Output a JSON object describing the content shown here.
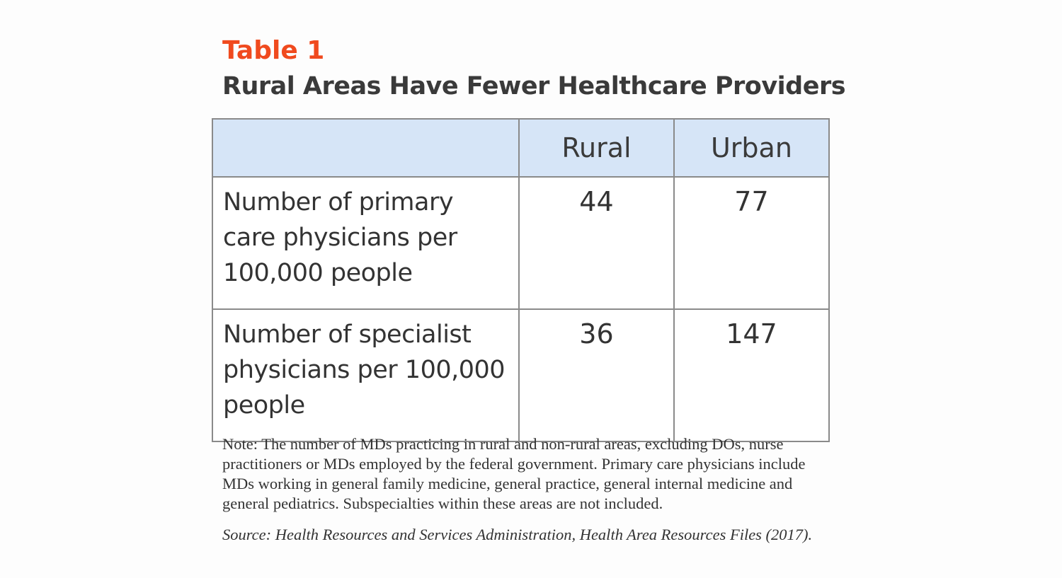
{
  "header": {
    "label": "Table 1",
    "title": "Rural Areas Have Fewer Healthcare Providers"
  },
  "table": {
    "columns": [
      "",
      "Rural",
      "Urban"
    ],
    "rows": [
      {
        "label": "Number of primary care physicians per 100,000 people",
        "rural": "44",
        "urban": "77"
      },
      {
        "label": "Number of specialist physicians per 100,000 people",
        "rural": "36",
        "urban": "147"
      }
    ]
  },
  "note": "Note: The number of MDs practicing in rural and non-rural areas, excluding DOs, nurse practitioners or MDs employed by the federal government. Primary care physicians include MDs working in general family medicine, general practice, general internal medicine and general pediatrics. Subspecialties within these areas are not included.",
  "source": "Source:  Health Resources and Services Administration, Health Area Resources Files (2017).",
  "colors": {
    "label": "#f04a1e",
    "header_bg": "#d6e5f7",
    "border": "#8a8a8a",
    "text": "#333333"
  }
}
